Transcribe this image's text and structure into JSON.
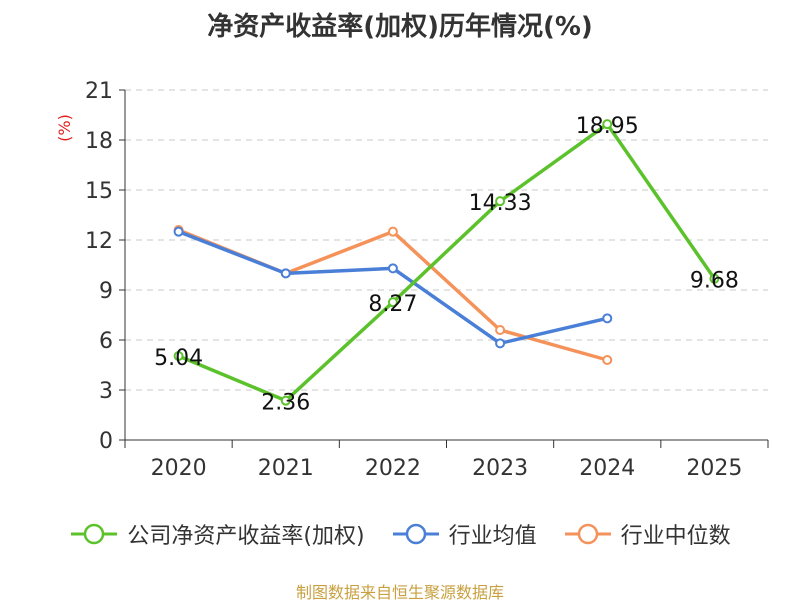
{
  "chart_data": {
    "type": "line",
    "title": "净资产收益率(加权)历年情况(%)",
    "ylabel": "(%)",
    "xlabel": "",
    "categories": [
      "2020",
      "2021",
      "2022",
      "2023",
      "2024",
      "2025"
    ],
    "ylim": [
      0,
      21
    ],
    "yticks": [
      0,
      3,
      6,
      9,
      12,
      15,
      18,
      21
    ],
    "grid": "horizontal-dashed",
    "legend_position": "bottom",
    "series": [
      {
        "name": "公司净资产收益率(加权)",
        "color": "#5cc22c",
        "values": [
          5.04,
          2.36,
          8.27,
          14.33,
          18.95,
          9.68
        ],
        "labels": [
          "5.04",
          "2.36",
          "8.27",
          "14.33",
          "18.95",
          "9.68"
        ]
      },
      {
        "name": "行业均值",
        "color": "#4a7fd8",
        "values": [
          12.5,
          10.0,
          10.3,
          5.8,
          7.3,
          null
        ]
      },
      {
        "name": "行业中位数",
        "color": "#f5925a",
        "values": [
          12.6,
          10.0,
          12.5,
          6.6,
          4.8,
          null
        ]
      }
    ],
    "source": "制图数据来自恒生聚源数据库"
  }
}
